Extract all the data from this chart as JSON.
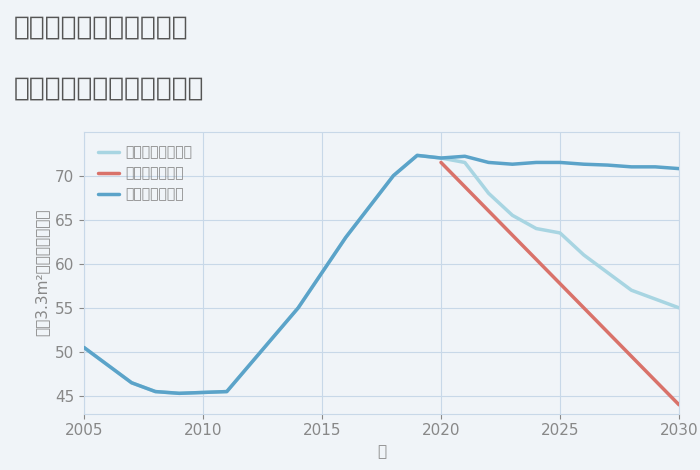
{
  "title_line1": "福岡県太宰府市長浦台の",
  "title_line2": "中古マンションの価格推移",
  "xlabel": "年",
  "ylabel": "坪（3.3m²）単価（万円）",
  "background_color": "#f0f4f8",
  "plot_bg_color": "#f0f4f8",
  "grid_color": "#c8d8e8",
  "title_color": "#555555",
  "axis_color": "#888888",
  "ylim": [
    43,
    75
  ],
  "xlim": [
    2005,
    2030
  ],
  "yticks": [
    45,
    50,
    55,
    60,
    65,
    70
  ],
  "xticks": [
    2005,
    2010,
    2015,
    2020,
    2025,
    2030
  ],
  "good_scenario": {
    "label": "グッドシナリオ",
    "color": "#5ba3c9",
    "x": [
      2005,
      2007,
      2008,
      2009,
      2011,
      2014,
      2016,
      2018,
      2019,
      2020,
      2021,
      2022,
      2023,
      2024,
      2025,
      2026,
      2027,
      2028,
      2029,
      2030
    ],
    "y": [
      50.5,
      46.5,
      45.5,
      45.3,
      45.5,
      55.0,
      63.0,
      70.0,
      72.3,
      72.0,
      72.2,
      71.5,
      71.3,
      71.5,
      71.5,
      71.3,
      71.2,
      71.0,
      71.0,
      70.8
    ]
  },
  "bad_scenario": {
    "label": "バッドシナリオ",
    "color": "#d9726a",
    "x": [
      2020,
      2030
    ],
    "y": [
      71.5,
      44.0
    ]
  },
  "normal_scenario": {
    "label": "ノーマルシナリオ",
    "color": "#a8d5e2",
    "x": [
      2005,
      2007,
      2008,
      2009,
      2011,
      2014,
      2016,
      2018,
      2019,
      2020,
      2021,
      2022,
      2023,
      2024,
      2025,
      2026,
      2027,
      2028,
      2029,
      2030
    ],
    "y": [
      50.5,
      46.5,
      45.5,
      45.3,
      45.5,
      55.0,
      63.0,
      70.0,
      72.3,
      72.0,
      71.5,
      68.0,
      65.5,
      64.0,
      63.5,
      61.0,
      59.0,
      57.0,
      56.0,
      55.0
    ]
  },
  "legend_loc": "upper left",
  "title_fontsize": 19,
  "label_fontsize": 11,
  "tick_fontsize": 11,
  "legend_fontsize": 11,
  "line_width": 2.5
}
